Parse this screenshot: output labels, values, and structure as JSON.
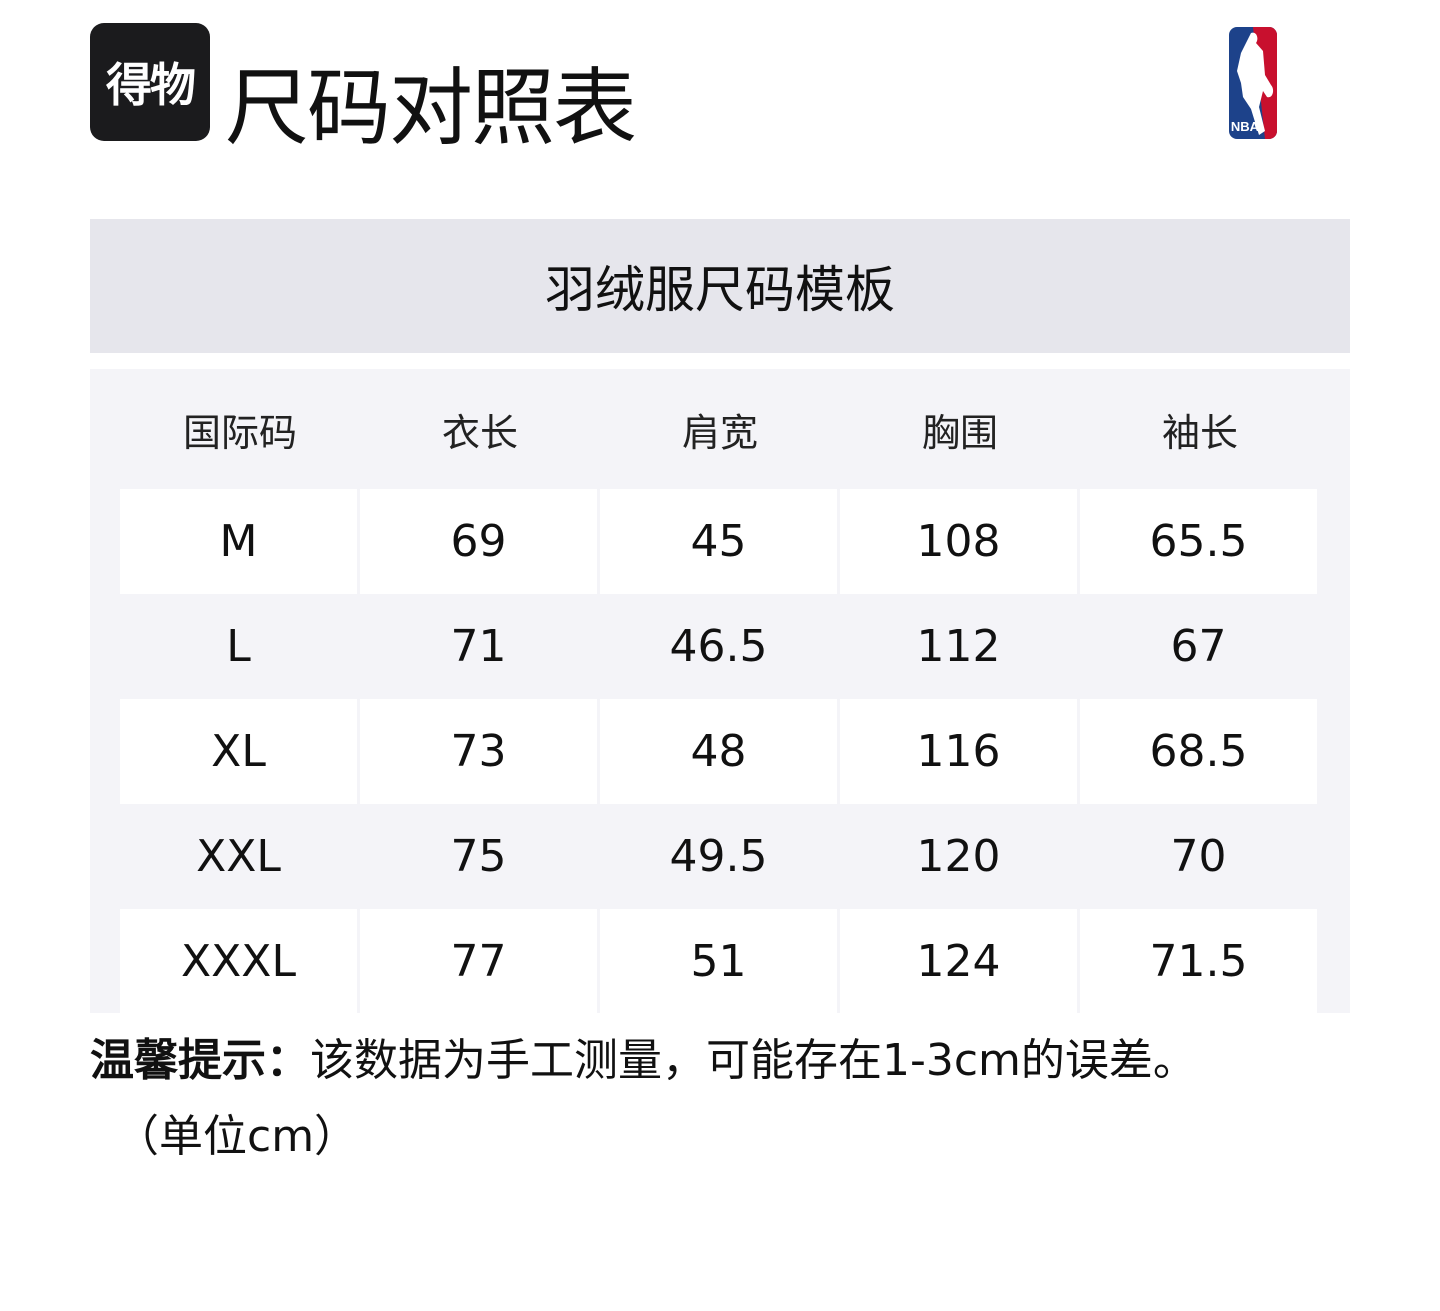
{
  "header": {
    "brand_logo_text": "得物",
    "title": "尺码对照表",
    "partner_logo_text": "NBA"
  },
  "table": {
    "caption": "羽绒服尺码模板",
    "columns": [
      "国际码",
      "衣长",
      "肩宽",
      "胸围",
      "袖长"
    ],
    "rows": [
      [
        "M",
        "69",
        "45",
        "108",
        "65.5"
      ],
      [
        "L",
        "71",
        "46.5",
        "112",
        "67"
      ],
      [
        "XL",
        "73",
        "48",
        "116",
        "68.5"
      ],
      [
        "XXL",
        "75",
        "49.5",
        "120",
        "70"
      ],
      [
        "XXXL",
        "77",
        "51",
        "124",
        "71.5"
      ]
    ]
  },
  "note": {
    "label": "温馨提示：",
    "text": "该数据为手工测量，可能存在1-3cm的误差。",
    "unit": "（单位cm）"
  },
  "colors": {
    "band": "#e6e6ec",
    "table_bg": "#f4f4f8",
    "nba_blue": "#1d428a",
    "nba_red": "#c8102e"
  }
}
